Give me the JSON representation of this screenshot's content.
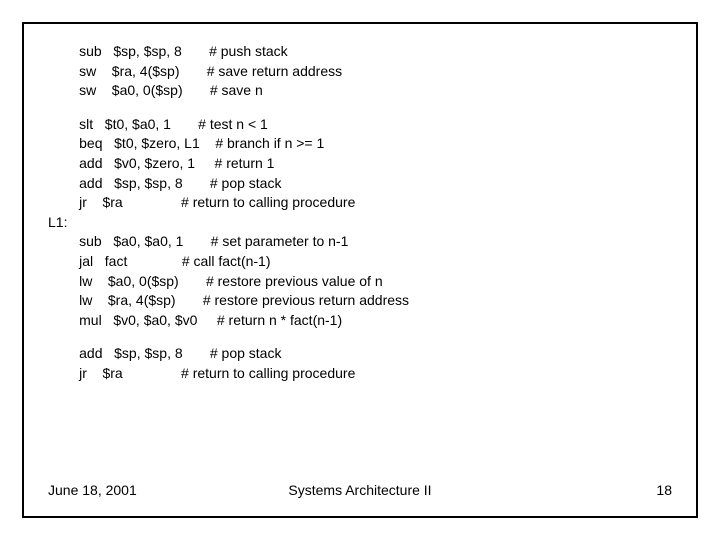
{
  "code": {
    "lines": [
      {
        "mn": "sub",
        "args": "$sp, $sp, 8",
        "comment": "# push stack"
      },
      {
        "mn": "sw",
        "args": "$ra, 4($sp)",
        "comment": "# save return address"
      },
      {
        "mn": "sw",
        "args": "$a0, 0($sp)",
        "comment": "# save n"
      },
      {
        "blank": true
      },
      {
        "mn": "slt",
        "args": "$t0, $a0, 1",
        "comment": "# test n < 1"
      },
      {
        "mn": "beq",
        "args": "$t0, $zero, L1",
        "comment": "# branch if n >= 1"
      },
      {
        "mn": "add",
        "args": "$v0, $zero, 1",
        "comment": "# return 1"
      },
      {
        "mn": "add",
        "args": "$sp, $sp, 8",
        "comment": "# pop stack"
      },
      {
        "mn": "jr",
        "args": "$ra",
        "comment": "# return to calling procedure"
      },
      {
        "label": "L1:"
      },
      {
        "mn": "sub",
        "args": "$a0, $a0, 1",
        "comment": "# set parameter to n-1"
      },
      {
        "mn": "jal",
        "args": "fact",
        "comment": "# call fact(n-1)"
      },
      {
        "mn": "lw",
        "args": "$a0, 0($sp)",
        "comment": "# restore previous value of n"
      },
      {
        "mn": "lw",
        "args": "$ra, 4($sp)",
        "comment": "# restore previous return address"
      },
      {
        "mn": "mul",
        "args": "$v0, $a0, $v0",
        "comment": "# return n * fact(n-1)"
      },
      {
        "blank": true
      },
      {
        "mn": "add",
        "args": "$sp, $sp, 8",
        "comment": "# pop stack"
      },
      {
        "mn": "jr",
        "args": "$ra",
        "comment": "# return to calling procedure"
      }
    ],
    "columns": {
      "indent_spaces": 8,
      "mnemonic_width": 6,
      "args_width": 18
    }
  },
  "footer": {
    "date": "June 18, 2001",
    "title": "Systems Architecture II",
    "page": "18"
  },
  "style": {
    "background": "#ffffff",
    "text_color": "#000000",
    "border_color": "#000000",
    "font_size_pt": 14
  }
}
